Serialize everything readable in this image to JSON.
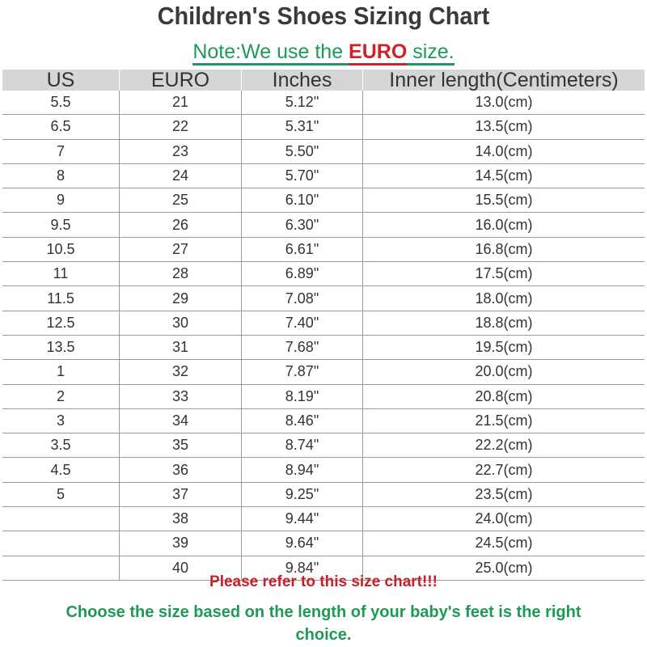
{
  "title": "Children's Shoes Sizing Chart",
  "note": {
    "prefix": "Note:We use the ",
    "highlight": "EURO",
    "suffix": " size."
  },
  "colors": {
    "green": "#1b9a5c",
    "red": "#d0202a",
    "header_bg": "#d6d6d6"
  },
  "table": {
    "headers": [
      "US",
      "EURO",
      "Inches",
      "Inner length(Centimeters)"
    ],
    "rows": [
      [
        "5.5",
        "21",
        "5.12\"",
        "13.0(cm)"
      ],
      [
        "6.5",
        "22",
        "5.31\"",
        "13.5(cm)"
      ],
      [
        "7",
        "23",
        "5.50\"",
        "14.0(cm)"
      ],
      [
        "8",
        "24",
        "5.70\"",
        "14.5(cm)"
      ],
      [
        "9",
        "25",
        "6.10\"",
        "15.5(cm)"
      ],
      [
        "9.5",
        "26",
        "6.30\"",
        "16.0(cm)"
      ],
      [
        "10.5",
        "27",
        "6.61\"",
        "16.8(cm)"
      ],
      [
        "11",
        "28",
        "6.89\"",
        "17.5(cm)"
      ],
      [
        "11.5",
        "29",
        "7.08\"",
        "18.0(cm)"
      ],
      [
        "12.5",
        "30",
        "7.40\"",
        "18.8(cm)"
      ],
      [
        "13.5",
        "31",
        "7.68\"",
        "19.5(cm)"
      ],
      [
        "1",
        "32",
        "7.87\"",
        "20.0(cm)"
      ],
      [
        "2",
        "33",
        "8.19\"",
        "20.8(cm)"
      ],
      [
        "3",
        "34",
        "8.46\"",
        "21.5(cm)"
      ],
      [
        "3.5",
        "35",
        "8.74\"",
        "22.2(cm)"
      ],
      [
        "4.5",
        "36",
        "8.94\"",
        "22.7(cm)"
      ],
      [
        "5",
        "37",
        "9.25\"",
        "23.5(cm)"
      ],
      [
        "",
        "38",
        "9.44\"",
        "24.0(cm)"
      ],
      [
        "",
        "39",
        "9.64\"",
        "24.5(cm)"
      ],
      [
        "",
        "40",
        "9.84\"",
        "25.0(cm)"
      ]
    ]
  },
  "footer": {
    "refer": "Please refer to this size chart!!!",
    "choose": "Choose the size based on the length of your baby's feet is the right choice."
  }
}
